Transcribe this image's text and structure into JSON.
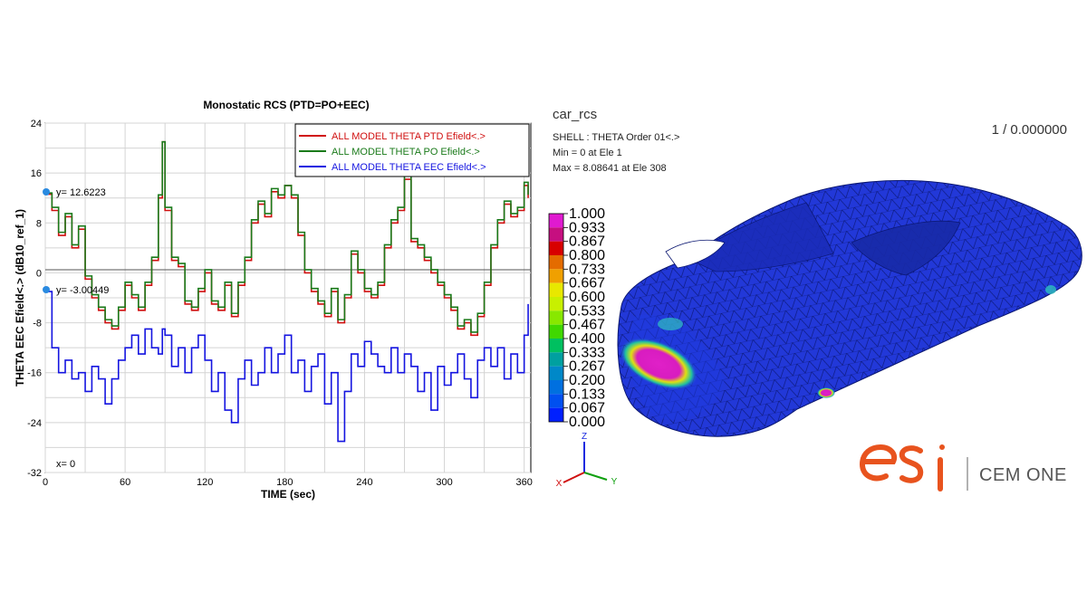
{
  "chart_data": {
    "type": "line",
    "title": "Monostatic RCS (PTD=PO+EEC)",
    "xlabel": "TIME (sec)",
    "ylabel": "THETA EEC Efield<.> (dB10_ref_1)",
    "xlim": [
      0,
      365
    ],
    "ylim": [
      -32,
      24
    ],
    "xticks": [
      0,
      60,
      120,
      180,
      240,
      300,
      360
    ],
    "yticks": [
      24,
      16,
      8,
      0,
      -8,
      -16,
      -24,
      -32
    ],
    "grid": true,
    "legend_position": "top-right",
    "x": [
      0,
      5,
      10,
      15,
      20,
      25,
      30,
      35,
      40,
      45,
      50,
      55,
      60,
      65,
      70,
      75,
      80,
      85,
      88,
      90,
      95,
      100,
      105,
      110,
      115,
      120,
      125,
      130,
      135,
      140,
      145,
      150,
      155,
      160,
      165,
      170,
      175,
      180,
      185,
      190,
      195,
      200,
      205,
      210,
      215,
      220,
      225,
      230,
      235,
      240,
      245,
      250,
      255,
      260,
      265,
      270,
      275,
      280,
      285,
      290,
      295,
      300,
      305,
      310,
      315,
      320,
      325,
      330,
      335,
      340,
      345,
      350,
      355,
      360,
      363
    ],
    "series": [
      {
        "name": "ALL MODEL THETA PTD Efield<.>",
        "color": "#d01010",
        "values": [
          12.6,
          10,
          6,
          9,
          4,
          7,
          -1,
          -4,
          -6,
          -8,
          -9,
          -6,
          -2,
          -4,
          -6,
          -2,
          2,
          12,
          21,
          10,
          2,
          1,
          -5,
          -6,
          -3,
          0,
          -5,
          -6,
          -2,
          -7,
          -2,
          2,
          8,
          11,
          9,
          13,
          12,
          14,
          12,
          6,
          0,
          -3,
          -5,
          -7,
          -3,
          -8,
          -4,
          3,
          0,
          -3,
          -4,
          -2,
          4,
          8,
          10,
          15,
          5,
          4,
          2,
          0,
          -2,
          -4,
          -6,
          -9,
          -8,
          -10,
          -7,
          -2,
          4,
          8,
          11,
          9,
          10,
          14,
          12
        ]
      },
      {
        "name": "ALL MODEL THETA PO  Efield<.>",
        "color": "#1a7a1a",
        "values": [
          12.8,
          10.5,
          6.5,
          9.5,
          4.5,
          7.5,
          -0.5,
          -3.5,
          -5.5,
          -7.5,
          -8.5,
          -5.5,
          -1.5,
          -3.5,
          -5.5,
          -1.5,
          2.5,
          12.5,
          21,
          10.5,
          2.5,
          1.5,
          -4.5,
          -5.5,
          -2.5,
          0.5,
          -4.5,
          -5.5,
          -1.5,
          -6.5,
          -1.5,
          2.5,
          8.5,
          11.5,
          9.5,
          13.5,
          12.5,
          14,
          12.5,
          6.5,
          0.5,
          -2.5,
          -4.5,
          -6.5,
          -2.5,
          -7.5,
          -3.5,
          3.5,
          0.5,
          -2.5,
          -3.5,
          -1.5,
          4.5,
          8.5,
          10.5,
          15.5,
          5.5,
          4.5,
          2.5,
          0.5,
          -1.5,
          -3.5,
          -5.5,
          -8.5,
          -7.5,
          -9.5,
          -6.5,
          -1.5,
          4.5,
          8.5,
          11.5,
          9.5,
          10.5,
          14.5,
          12.5
        ]
      },
      {
        "name": "ALL MODEL THETA EEC Efield<.>",
        "color": "#1414e0",
        "values": [
          -3,
          -12,
          -16,
          -14,
          -17,
          -16,
          -19,
          -15,
          -17,
          -21,
          -17,
          -14,
          -12,
          -10,
          -13,
          -9,
          -12,
          -13,
          -9,
          -10,
          -15,
          -12,
          -16,
          -12,
          -10,
          -14,
          -19,
          -16,
          -22,
          -24,
          -17,
          -14,
          -18,
          -16,
          -12,
          -16,
          -13,
          -10,
          -16,
          -14,
          -19,
          -15,
          -13,
          -21,
          -16,
          -27,
          -19,
          -13,
          -15,
          -11,
          -13,
          -15,
          -16,
          -12,
          -16,
          -13,
          -15,
          -19,
          -16,
          -22,
          -15,
          -18,
          -16,
          -13,
          -17,
          -20,
          -14,
          -12,
          -15,
          -12,
          -17,
          -13,
          -16,
          -10,
          -5
        ]
      }
    ]
  },
  "markers": {
    "upper_readout": "y= 12.6223",
    "lower_readout": "y= -3.00449",
    "x_readout": "x= 0"
  },
  "model_view": {
    "name": "car_rcs",
    "line1": "SHELL  :  THETA  Order  01<.>",
    "line2": "Min  =  0  at  Ele  1",
    "line3": "Max  =  8.08641  at  Ele  308",
    "frame": "1 / 0.000000",
    "colorbar_labels": [
      "1.000",
      "0.933",
      "0.867",
      "0.800",
      "0.733",
      "0.667",
      "0.600",
      "0.533",
      "0.467",
      "0.400",
      "0.333",
      "0.267",
      "0.200",
      "0.133",
      "0.067",
      "0.000"
    ],
    "colorbar_colors": [
      "#e01ad0",
      "#c60f80",
      "#d80000",
      "#e46c00",
      "#f0a000",
      "#e8e800",
      "#c8f000",
      "#88e800",
      "#40d800",
      "#00c060",
      "#00a0a0",
      "#0088c8",
      "#0070e0",
      "#0050f0",
      "#0020ff"
    ],
    "axes": {
      "z": "Z",
      "x": "X",
      "y": "Y"
    }
  },
  "brand": {
    "logo_text": "esi",
    "product": "CEM ONE",
    "logo_color": "#e8531e"
  }
}
